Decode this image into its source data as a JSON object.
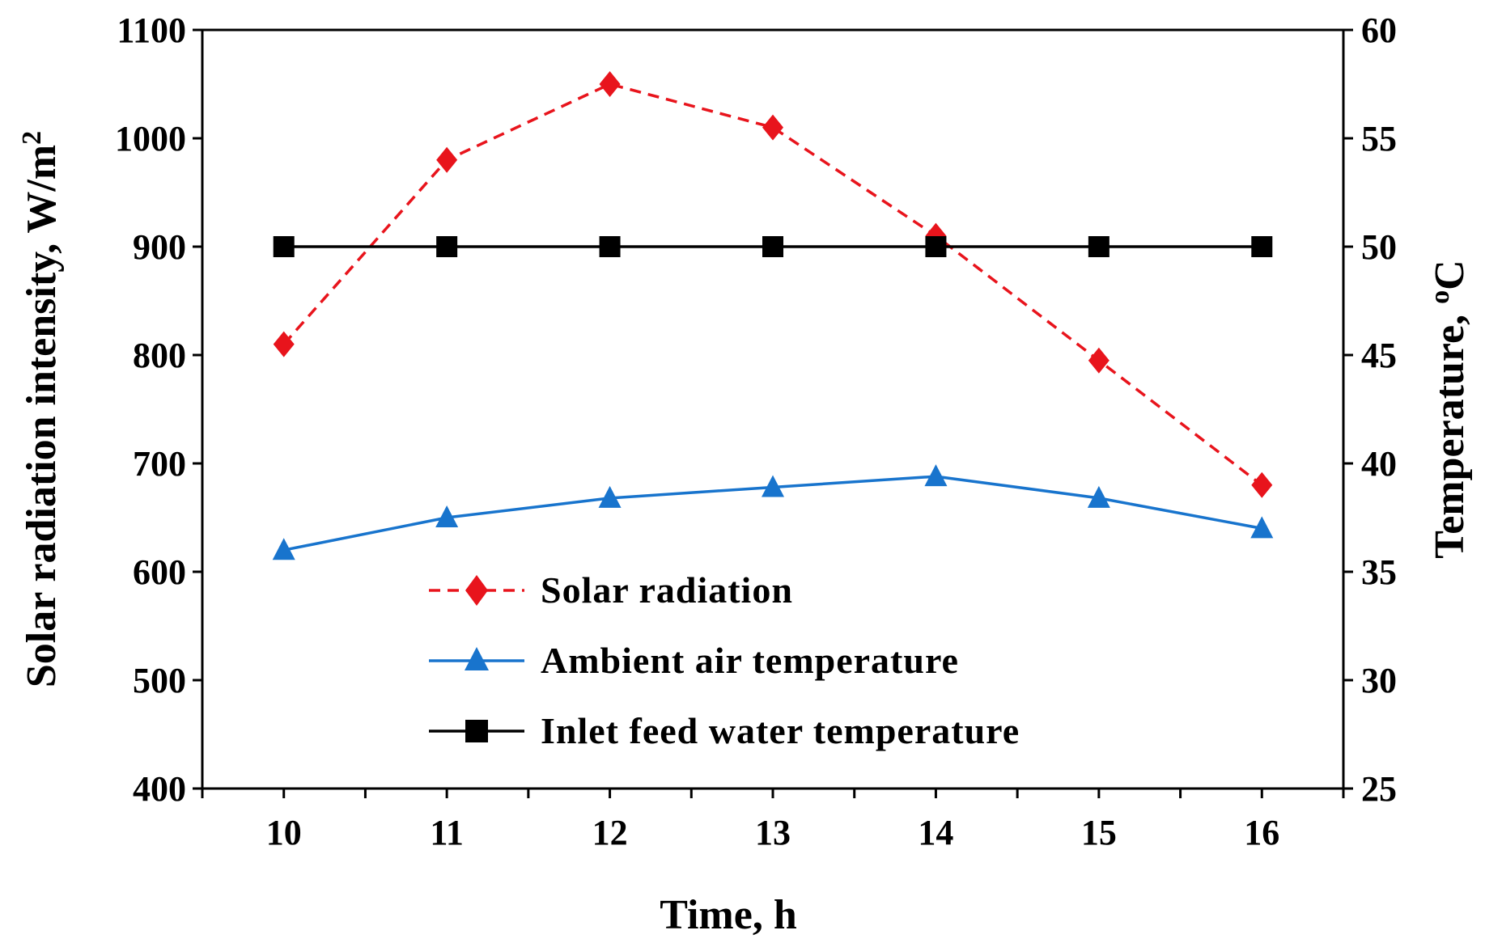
{
  "chart_data": {
    "type": "line",
    "title": "",
    "xlabel": "Time, h",
    "ylabel_left": {
      "text": "Solar radiation intensity, W/m",
      "superscript": "2"
    },
    "ylabel_right": {
      "superscript": "o",
      "text": "C",
      "prefix": "Temperature, "
    },
    "x": [
      10,
      11,
      12,
      13,
      14,
      15,
      16
    ],
    "xlim": [
      9.5,
      16.5
    ],
    "ylim_left": [
      400,
      1100
    ],
    "ylim_right": [
      25,
      60
    ],
    "x_ticks": [
      "10",
      "11",
      "12",
      "13",
      "14",
      "15",
      "16"
    ],
    "y_left_ticks": [
      "400",
      "500",
      "600",
      "700",
      "800",
      "900",
      "1000",
      "1100"
    ],
    "y_right_ticks": [
      "25",
      "30",
      "35",
      "40",
      "45",
      "50",
      "55",
      "60"
    ],
    "grid": false,
    "legend_position": "lower-center",
    "series": [
      {
        "name": "Solar radiation",
        "axis": "left",
        "values": [
          810,
          980,
          1050,
          1010,
          910,
          795,
          680
        ],
        "color": "#e8141c",
        "line_style": "dashed",
        "marker": "diamond"
      },
      {
        "name": "Ambient air temperature",
        "axis": "right",
        "values": [
          36,
          37.5,
          38.4,
          38.9,
          39.4,
          38.4,
          37
        ],
        "color": "#1874cd",
        "line_style": "solid",
        "marker": "triangle"
      },
      {
        "name": "Inlet feed water temperature",
        "axis": "right",
        "values": [
          50,
          50,
          50,
          50,
          50,
          50,
          50
        ],
        "color": "#000000",
        "line_style": "solid",
        "marker": "square"
      }
    ]
  }
}
